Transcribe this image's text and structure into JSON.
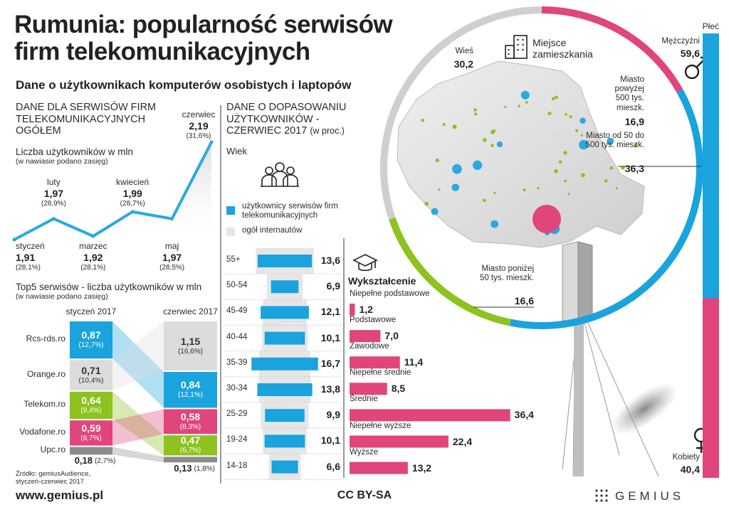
{
  "title": "Rumunia: popularność serwisów firm telekomunikacyjnych",
  "subtitle": "Dane o użytkownikach komputerów osobistych i laptopów",
  "source": "Źródło: gemiusAudience, styczeń-czerwiec 2017",
  "website": "www.gemius.pl",
  "license": "CC BY-SA",
  "brand": "GEMIUS",
  "chart_data": [
    {
      "type": "line",
      "title": "DANE DLA SERWISÓW FIRM TELEKOMUNIKACYJNYCH OGÓŁEM",
      "subtitle": "Liczba użytkowników w mln",
      "note": "(w nawiasie podano zasięg)",
      "categories": [
        "styczeń",
        "luty",
        "marzec",
        "kwiecień",
        "maj",
        "czerwiec"
      ],
      "values": [
        1.91,
        1.97,
        1.92,
        1.99,
        1.97,
        2.19
      ],
      "value_labels": [
        "1,91",
        "1,97",
        "1,92",
        "1,99",
        "1,97",
        "2,19"
      ],
      "reach_labels": [
        "(28,1%)",
        "(28,9%)",
        "(28,1%)",
        "(28,7%)",
        "(28,5%)",
        "(31,6%)"
      ],
      "color": "#29a9e0"
    },
    {
      "type": "flow",
      "title": "Top5 serwisów - liczba użytkowników w mln",
      "note": "(w nawiasie podano zasięg)",
      "categories": [
        "Rcs-rds.ro",
        "Orange.ro",
        "Telekom.ro",
        "Vodafone.ro",
        "Upc.ro"
      ],
      "colors": [
        "#1aa3dd",
        "#dcdcdc",
        "#8dc21f",
        "#e0457b",
        "#8c8c8c"
      ],
      "series": [
        {
          "name": "styczeń 2017",
          "values": [
            0.87,
            0.71,
            0.64,
            0.59,
            0.18
          ],
          "value_labels": [
            "0,87",
            "0,71",
            "0,64",
            "0,59",
            "0,18"
          ],
          "reach_labels": [
            "(12,7%)",
            "(10,4%)",
            "(9,4%)",
            "(8,7%)",
            "(2,7%)"
          ]
        },
        {
          "name": "czerwiec 2017",
          "values": [
            0.84,
            1.15,
            0.47,
            0.58,
            0.13
          ],
          "value_labels": [
            "0,84",
            "1,15",
            "0,47",
            "0,58",
            "0,13"
          ],
          "reach_labels": [
            "(12,1%)",
            "(16,6%)",
            "(6,7%)",
            "(8,3%)",
            "(1,8%)"
          ]
        }
      ]
    },
    {
      "type": "butterfly",
      "title": "DANE O DOPASOWANIU UŻYTKOWNIKÓW - CZERWIEC 2017",
      "unit": "(w proc.)",
      "axis_label": "Wiek",
      "categories": [
        "55+",
        "50-54",
        "45-49",
        "40-44",
        "35-39",
        "30-34",
        "25-29",
        "19-24",
        "14-18"
      ],
      "series": [
        {
          "name": "użytkownicy serwisów firm telekomunikacyjnych",
          "color": "#1aa3dd",
          "values": [
            13.6,
            6.9,
            12.1,
            10.1,
            16.7,
            13.8,
            9.9,
            10.1,
            6.6
          ],
          "value_labels": [
            "13,6",
            "6,9",
            "12,1",
            "10,1",
            "16,7",
            "13,8",
            "9,9",
            "10,1",
            "6,6"
          ]
        },
        {
          "name": "ogół internautów",
          "color": "#e6e6e6",
          "values": [
            14.5,
            9,
            11,
            11.5,
            13,
            13,
            12,
            11,
            8
          ]
        }
      ]
    },
    {
      "type": "hbar",
      "title": "Wykształcenie",
      "categories": [
        "Niepełne podstawowe",
        "Podstawowe",
        "Zawodowe",
        "Niepełne średnie",
        "Średnie",
        "Niepełne wyższe",
        "Wyższe"
      ],
      "values": [
        1.2,
        7.0,
        11.4,
        8.5,
        36.4,
        22.4,
        13.2
      ],
      "value_labels": [
        "1,2",
        "7,0",
        "11,4",
        "8,5",
        "36,4",
        "22,4",
        "13,2"
      ],
      "color": "#e0457b"
    },
    {
      "type": "donut",
      "title": "Miejsce zamieszkania",
      "categories": [
        "Miasto powyżej 500 tys. mieszk.",
        "Miasto od 50 do 500 tys. mieszk.",
        "Miasto poniżej 50 tys. mieszk.",
        "Wieś"
      ],
      "values": [
        16.9,
        36.3,
        16.6,
        30.2
      ],
      "value_labels": [
        "16,9",
        "36,3",
        "16,6",
        "30,2"
      ],
      "colors": [
        "#e0457b",
        "#1aa3dd",
        "#8dc21f",
        "#cfcfcf"
      ]
    },
    {
      "type": "stacked_bar",
      "title": "Płeć",
      "categories": [
        "Mężczyźni",
        "Kobiety"
      ],
      "values": [
        59.6,
        40.4
      ],
      "value_labels": [
        "59,6",
        "40,4"
      ],
      "colors": [
        "#1aa3dd",
        "#e0457b"
      ]
    }
  ]
}
